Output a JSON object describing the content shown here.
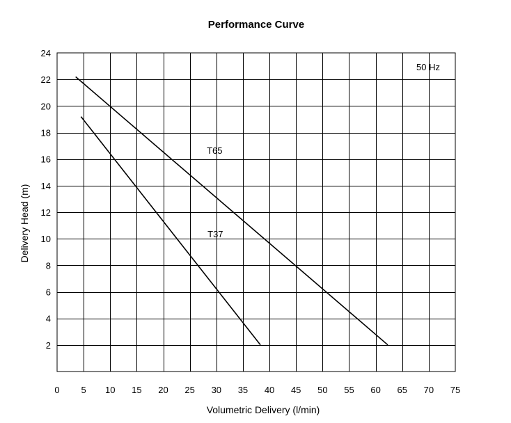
{
  "chart_data": {
    "type": "line",
    "title": "Performance Curve",
    "xlabel": "Volumetric Delivery (l/min)",
    "ylabel": "Delivery Head (m)",
    "xlim": [
      0,
      75
    ],
    "ylim": [
      0,
      24
    ],
    "x_ticks": [
      0,
      5,
      10,
      15,
      20,
      25,
      30,
      35,
      40,
      45,
      50,
      55,
      60,
      65,
      70,
      75
    ],
    "y_ticks": [
      2,
      4,
      6,
      8,
      10,
      12,
      14,
      16,
      18,
      20,
      22,
      24
    ],
    "grid": true,
    "annotation": "50 Hz",
    "series": [
      {
        "name": "T65",
        "points": [
          [
            3.5,
            22.2
          ],
          [
            62.3,
            2.0
          ]
        ]
      },
      {
        "name": "T37",
        "points": [
          [
            4.5,
            19.2
          ],
          [
            38.3,
            2.0
          ]
        ]
      }
    ]
  }
}
